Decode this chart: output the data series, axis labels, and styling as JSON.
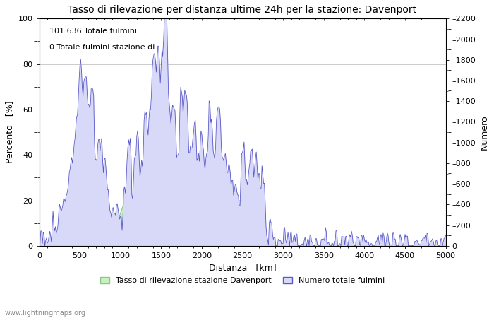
{
  "title": "Tasso di rilevazione per distanza ultime 24h per la stazione: Davenport",
  "xlabel": "Distanza   [km]",
  "ylabel_left": "Percento   [%]",
  "ylabel_right": "Numero",
  "annotation_line1": "101.636 Totale fulmini",
  "annotation_line2": "0 Totale fulmini stazione di",
  "xlim": [
    0,
    5000
  ],
  "ylim_left": [
    0,
    100
  ],
  "ylim_right": [
    0,
    2200
  ],
  "yticks_left": [
    0,
    20,
    40,
    60,
    80,
    100
  ],
  "yticks_right": [
    0,
    200,
    400,
    600,
    800,
    1000,
    1200,
    1400,
    1600,
    1800,
    2000,
    2200
  ],
  "xticks": [
    0,
    500,
    1000,
    1500,
    2000,
    2500,
    3000,
    3500,
    4000,
    4500,
    5000
  ],
  "legend_entries": [
    "Tasso di rilevazione stazione Davenport",
    "Numero totale fulmini"
  ],
  "green_fill_color": "#c8f0c0",
  "blue_fill_color": "#d8d8f8",
  "blue_line_color": "#5858c8",
  "green_line_color": "#88c888",
  "watermark": "www.lightningmaps.org",
  "background_color": "#ffffff",
  "grid_color": "#b8b8b8",
  "title_fontsize": 10,
  "axis_label_fontsize": 9,
  "tick_fontsize": 8,
  "annotation_fontsize": 8
}
